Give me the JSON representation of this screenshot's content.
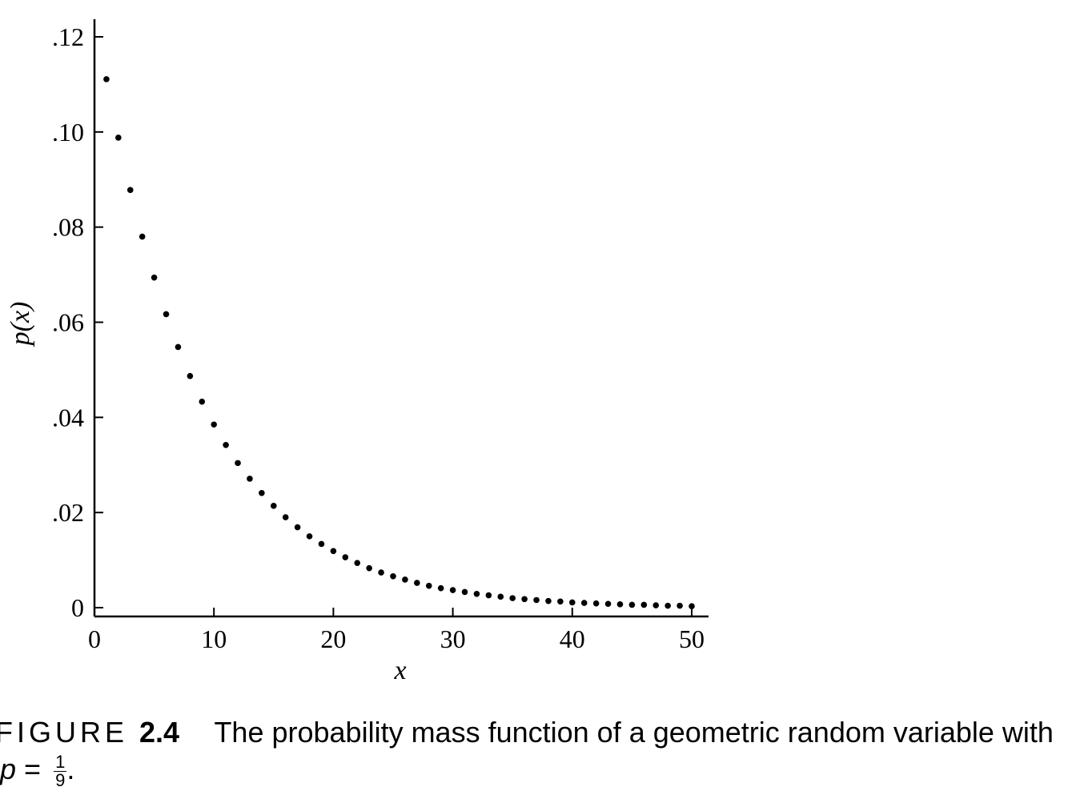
{
  "chart_data": {
    "type": "scatter",
    "xlabel": "x",
    "ylabel": "p(x)",
    "xlim": [
      0,
      51
    ],
    "ylim": [
      -0.0018,
      0.1235
    ],
    "xticks": [
      0,
      10,
      20,
      30,
      40,
      50
    ],
    "yticks": [
      0,
      0.02,
      0.04,
      0.06,
      0.08,
      0.1,
      0.12
    ],
    "ytick_labels": [
      "0",
      ".02",
      ".04",
      ".06",
      ".08",
      ".10",
      ".12"
    ],
    "grid": false,
    "legend": "none",
    "marker_color": "#000000",
    "series": [
      {
        "x": [
          1,
          2,
          3,
          4,
          5,
          6,
          7,
          8,
          9,
          10,
          11,
          12,
          13,
          14,
          15,
          16,
          17,
          18,
          19,
          20,
          21,
          22,
          23,
          24,
          25,
          26,
          27,
          28,
          29,
          30,
          31,
          32,
          33,
          34,
          35,
          36,
          37,
          38,
          39,
          40,
          41,
          42,
          43,
          44,
          45,
          46,
          47,
          48,
          49,
          50
        ],
        "y": [
          0.1111,
          0.0988,
          0.0878,
          0.078,
          0.0694,
          0.0617,
          0.0548,
          0.0487,
          0.0433,
          0.0385,
          0.0342,
          0.0304,
          0.0271,
          0.0241,
          0.0214,
          0.019,
          0.0169,
          0.015,
          0.0134,
          0.0119,
          0.0106,
          0.0094,
          0.0083,
          0.0074,
          0.0066,
          0.0059,
          0.0052,
          0.0046,
          0.0041,
          0.0037,
          0.0033,
          0.0029,
          0.0026,
          0.0023,
          0.002,
          0.0018,
          0.0016,
          0.0014,
          0.0013,
          0.0011,
          0.001,
          0.0009,
          0.0008,
          0.0007,
          0.0006,
          0.0006,
          0.0005,
          0.0004,
          0.0004,
          0.0003
        ]
      }
    ]
  },
  "caption": {
    "figure_word": "FIGURE",
    "figure_number": "2.4",
    "text": "The probability mass function of a geometric random variable with",
    "formula_variable": "p",
    "formula_equals": " = ",
    "fraction_numerator": "1",
    "fraction_denominator": "9",
    "formula_end": "."
  }
}
